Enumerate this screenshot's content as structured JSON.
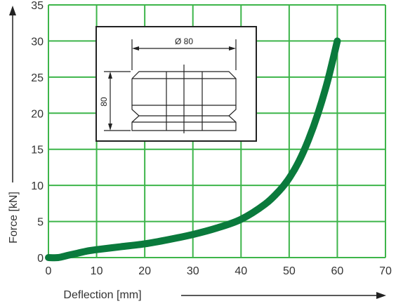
{
  "chart_data": {
    "type": "line",
    "xlabel": "Deflection [mm]",
    "ylabel": "Force [kN]",
    "xlim": [
      0,
      70
    ],
    "ylim": [
      0,
      35
    ],
    "xticks": [
      "0",
      "10",
      "20",
      "30",
      "40",
      "50",
      "60",
      "70"
    ],
    "yticks": [
      "0",
      "5",
      "10",
      "15",
      "20",
      "25",
      "30",
      "35"
    ],
    "grid": true,
    "series": [
      {
        "color": "#0a7a3c",
        "x": [
          0,
          2,
          4,
          6,
          8,
          10,
          15,
          20,
          25,
          30,
          35,
          40,
          45,
          48,
          50,
          52,
          54,
          56,
          58,
          60
        ],
        "y": [
          0,
          0,
          0.3,
          0.6,
          0.9,
          1.1,
          1.5,
          1.9,
          2.5,
          3.2,
          4.1,
          5.3,
          7.4,
          9.3,
          11,
          13.3,
          16.3,
          20,
          24.5,
          30
        ]
      }
    ],
    "inset": {
      "diameter_label": "Ø 80",
      "height_label": "80"
    }
  },
  "colors": {
    "grid": "#3db54a",
    "curve": "#0a7a3c",
    "axis": "#222222"
  }
}
